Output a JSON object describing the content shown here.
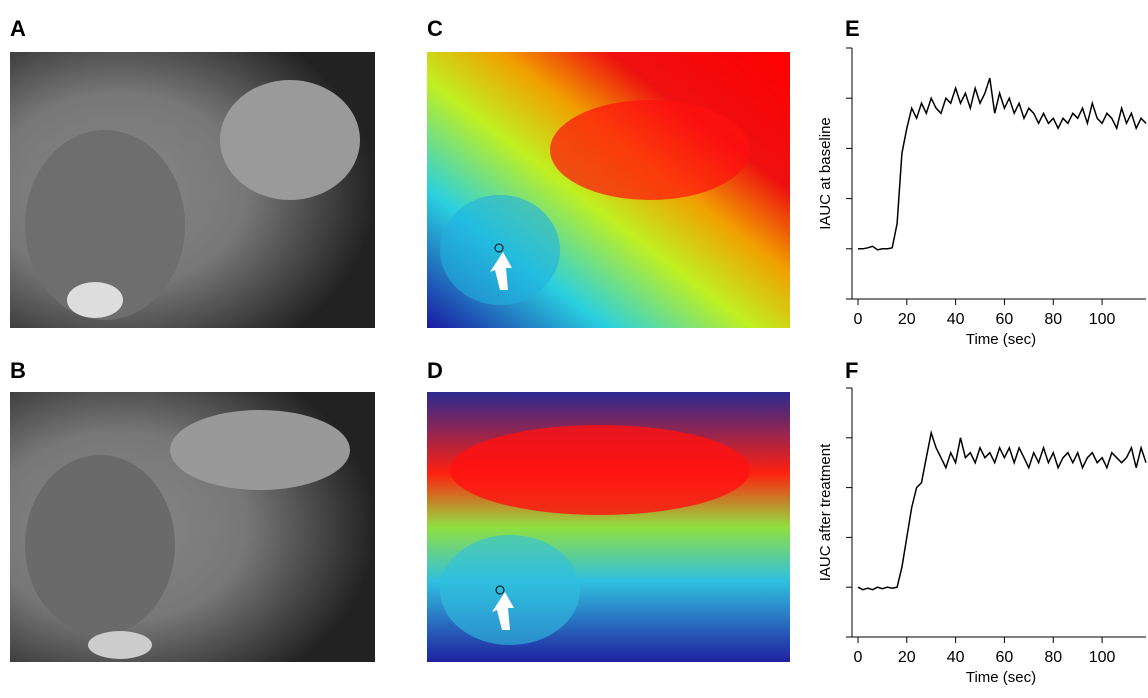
{
  "panel_labels": [
    "A",
    "B",
    "C",
    "D",
    "E",
    "F"
  ],
  "chart_data": [
    {
      "type": "line",
      "y_label": "IAUC at baseline",
      "x_label": "Time (sec)",
      "color": "#000000",
      "x": [
        0,
        2,
        4,
        6,
        8,
        10,
        12,
        14,
        16,
        18,
        20,
        22,
        24,
        26,
        28,
        30,
        32,
        34,
        36,
        38,
        40,
        42,
        44,
        46,
        48,
        50,
        52,
        54,
        56,
        58,
        60,
        62,
        64,
        66,
        68,
        70,
        72,
        74,
        76,
        78,
        80,
        82,
        84,
        86,
        88,
        90,
        92,
        94,
        96,
        98,
        100,
        102,
        104,
        106,
        108,
        110,
        112,
        114,
        116,
        118
      ],
      "values": [
        1.0,
        1.0,
        1.02,
        1.05,
        0.98,
        1.0,
        1.0,
        1.02,
        1.5,
        2.9,
        3.4,
        3.8,
        3.6,
        3.9,
        3.7,
        4.0,
        3.8,
        3.7,
        4.0,
        3.9,
        4.2,
        3.9,
        4.1,
        3.8,
        4.2,
        3.9,
        4.1,
        4.4,
        3.7,
        4.1,
        3.8,
        4.0,
        3.7,
        3.9,
        3.6,
        3.8,
        3.7,
        3.5,
        3.7,
        3.5,
        3.6,
        3.4,
        3.6,
        3.5,
        3.7,
        3.6,
        3.8,
        3.5,
        3.9,
        3.6,
        3.5,
        3.7,
        3.6,
        3.4,
        3.8,
        3.5,
        3.7,
        3.4,
        3.6,
        3.5
      ],
      "xlim": [
        0,
        118
      ],
      "xticks": [
        0,
        20,
        40,
        60,
        80,
        100
      ],
      "ylim": [
        0,
        5
      ],
      "yticks": [
        0,
        1,
        2,
        3,
        4,
        5
      ]
    },
    {
      "type": "line",
      "y_label": "IAUC after treatment",
      "x_label": "Time (sec)",
      "color": "#000000",
      "x": [
        0,
        2,
        4,
        6,
        8,
        10,
        12,
        14,
        16,
        18,
        20,
        22,
        24,
        26,
        28,
        30,
        32,
        34,
        36,
        38,
        40,
        42,
        44,
        46,
        48,
        50,
        52,
        54,
        56,
        58,
        60,
        62,
        64,
        66,
        68,
        70,
        72,
        74,
        76,
        78,
        80,
        82,
        84,
        86,
        88,
        90,
        92,
        94,
        96,
        98,
        100,
        102,
        104,
        106,
        108,
        110,
        112,
        114,
        116,
        118
      ],
      "values": [
        1.0,
        0.95,
        0.98,
        0.95,
        1.0,
        0.97,
        1.0,
        0.98,
        1.0,
        1.4,
        2.0,
        2.6,
        3.0,
        3.1,
        3.6,
        4.1,
        3.8,
        3.6,
        3.4,
        3.7,
        3.5,
        4.0,
        3.6,
        3.7,
        3.5,
        3.8,
        3.6,
        3.7,
        3.5,
        3.8,
        3.6,
        3.8,
        3.5,
        3.8,
        3.6,
        3.4,
        3.7,
        3.5,
        3.8,
        3.5,
        3.7,
        3.4,
        3.6,
        3.7,
        3.5,
        3.7,
        3.4,
        3.6,
        3.7,
        3.5,
        3.6,
        3.4,
        3.7,
        3.6,
        3.5,
        3.6,
        3.8,
        3.4,
        3.8,
        3.5
      ],
      "xlim": [
        0,
        118
      ],
      "xticks": [
        0,
        20,
        40,
        60,
        80,
        100
      ],
      "ylim": [
        0,
        5
      ],
      "yticks": [
        0,
        1,
        2,
        3,
        4,
        5
      ]
    }
  ]
}
